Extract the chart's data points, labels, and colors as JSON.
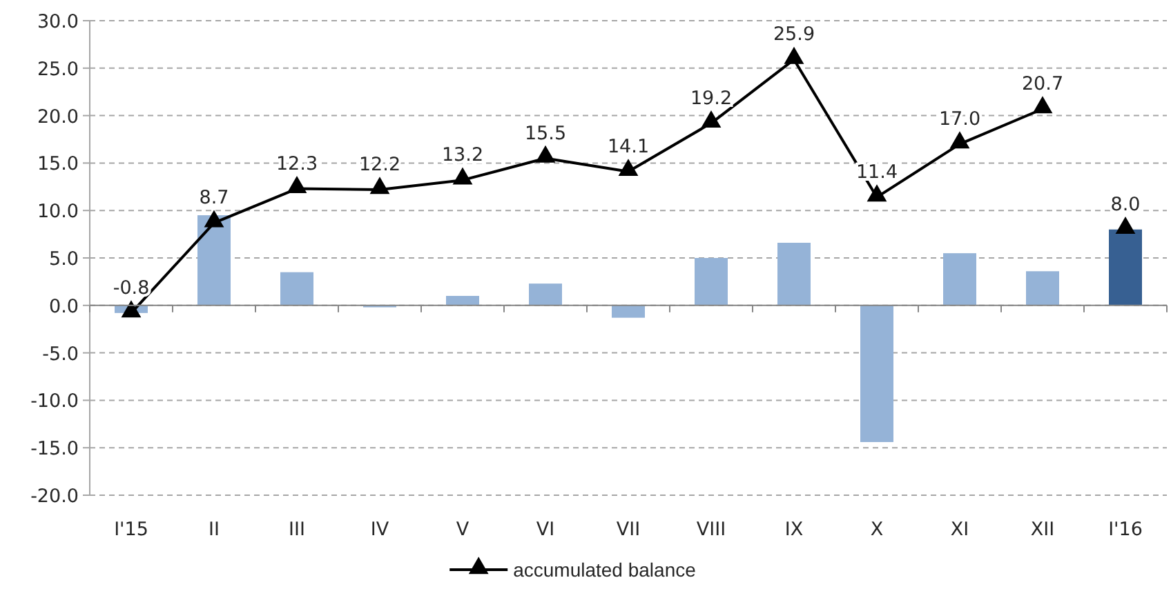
{
  "chart_data": {
    "type": "bar",
    "categories": [
      "I'15",
      "II",
      "III",
      "IV",
      "V",
      "VI",
      "VII",
      "VIII",
      "IX",
      "X",
      "XI",
      "XII",
      "I'16"
    ],
    "series": [
      {
        "colors": [
          "#95b3d7",
          "#95b3d7",
          "#95b3d7",
          "#95b3d7",
          "#95b3d7",
          "#95b3d7",
          "#95b3d7",
          "#95b3d7",
          "#95b3d7",
          "#95b3d7",
          "#95b3d7",
          "#95b3d7",
          "#376092"
        ],
        "values": [
          -0.8,
          9.5,
          3.5,
          -0.2,
          1.0,
          2.3,
          -1.3,
          5.0,
          6.6,
          -14.4,
          5.5,
          3.6,
          8.0
        ]
      },
      {
        "type": "line",
        "name": "accumulated balance",
        "color": "#000000",
        "marker": "triangle",
        "values": [
          -0.8,
          8.7,
          12.3,
          12.2,
          13.2,
          15.5,
          14.1,
          19.2,
          25.9,
          11.4,
          17.0,
          20.7,
          null
        ],
        "value_labels": [
          "-0.8",
          "8.7",
          "12.3",
          "12.2",
          "13.2",
          "15.5",
          "14.1",
          "19.2",
          "25.9",
          "11.4",
          "17.0",
          "20.7",
          null
        ]
      },
      {
        "type": "scatter",
        "color": "#000000",
        "marker": "triangle",
        "values": [
          null,
          null,
          null,
          null,
          null,
          null,
          null,
          null,
          null,
          null,
          null,
          null,
          8.0
        ],
        "value_labels": [
          null,
          null,
          null,
          null,
          null,
          null,
          null,
          null,
          null,
          null,
          null,
          null,
          "8.0"
        ]
      }
    ],
    "ylim": [
      -20,
      30
    ],
    "yticks": [
      {
        "value": -20,
        "label": "-20.0"
      },
      {
        "value": -15,
        "label": "-15.0"
      },
      {
        "value": -10,
        "label": "-10.0"
      },
      {
        "value": -5,
        "label": "-5.0"
      },
      {
        "value": 0,
        "label": "0.0"
      },
      {
        "value": 5,
        "label": "5.0"
      },
      {
        "value": 10,
        "label": "10.0"
      },
      {
        "value": 15,
        "label": "15.0"
      },
      {
        "value": 20,
        "label": "20.0"
      },
      {
        "value": 25,
        "label": "25.0"
      },
      {
        "value": 30,
        "label": "30.0"
      }
    ],
    "grid": "y",
    "legend": "bottom"
  }
}
